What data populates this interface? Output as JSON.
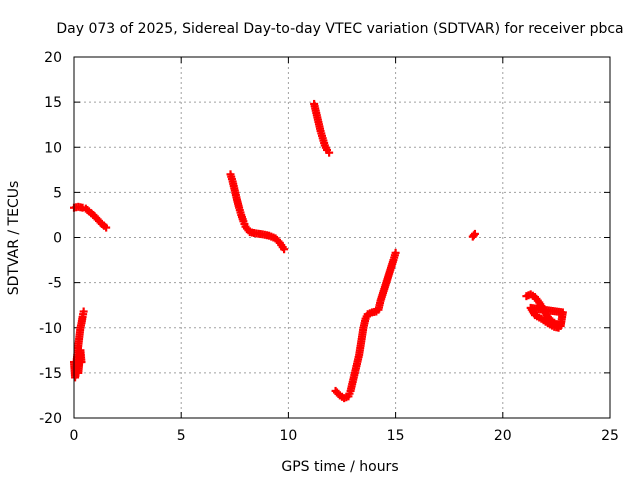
{
  "chart_data": {
    "type": "scatter",
    "title": "Day 073 of 2025, Sidereal Day-to-day VTEC variation (SDTVAR) for receiver pbca",
    "xlabel": "GPS time / hours",
    "ylabel": "SDTVAR / TECUs",
    "xlim": [
      0,
      25
    ],
    "ylim": [
      -20,
      20
    ],
    "xticks": [
      0,
      5,
      10,
      15,
      20,
      25
    ],
    "yticks": [
      -20,
      -15,
      -10,
      -5,
      0,
      5,
      10,
      15,
      20
    ],
    "grid": true,
    "marker": "plus",
    "color": "#ff0000",
    "series": [
      {
        "points": [
          [
            0.0,
            -13.8
          ],
          [
            0.05,
            -15.5
          ],
          [
            0.1,
            -14.5
          ],
          [
            0.15,
            -13.0
          ],
          [
            0.2,
            -12.0
          ],
          [
            0.25,
            -11.0
          ],
          [
            0.3,
            -10.0
          ],
          [
            0.35,
            -9.5
          ],
          [
            0.4,
            -8.8
          ],
          [
            0.45,
            -8.2
          ],
          [
            0.15,
            -14.0
          ],
          [
            0.25,
            -13.5
          ],
          [
            0.35,
            -13.8
          ],
          [
            0.3,
            -12.5
          ],
          [
            0.2,
            -15.0
          ]
        ]
      },
      {
        "points": [
          [
            0.0,
            3.3
          ],
          [
            0.2,
            3.4
          ],
          [
            0.4,
            3.3
          ],
          [
            0.55,
            3.2
          ],
          [
            0.7,
            2.9
          ],
          [
            0.9,
            2.5
          ],
          [
            1.1,
            2.0
          ],
          [
            1.3,
            1.5
          ],
          [
            1.5,
            1.1
          ]
        ]
      },
      {
        "points": [
          [
            7.3,
            7.0
          ],
          [
            7.4,
            6.2
          ],
          [
            7.5,
            5.2
          ],
          [
            7.6,
            4.2
          ],
          [
            7.7,
            3.3
          ],
          [
            7.8,
            2.5
          ],
          [
            7.9,
            1.8
          ],
          [
            8.0,
            1.2
          ],
          [
            8.2,
            0.6
          ],
          [
            8.5,
            0.45
          ],
          [
            8.8,
            0.35
          ],
          [
            9.1,
            0.2
          ],
          [
            9.4,
            -0.1
          ],
          [
            9.6,
            -0.6
          ],
          [
            9.8,
            -1.3
          ]
        ]
      },
      {
        "points": [
          [
            11.2,
            14.8
          ],
          [
            11.3,
            13.8
          ],
          [
            11.4,
            12.8
          ],
          [
            11.5,
            11.8
          ],
          [
            11.6,
            11.0
          ],
          [
            11.7,
            10.2
          ],
          [
            11.8,
            9.7
          ],
          [
            11.9,
            9.4
          ]
        ]
      },
      {
        "points": [
          [
            12.2,
            -17.0
          ],
          [
            12.4,
            -17.5
          ],
          [
            12.6,
            -17.8
          ],
          [
            12.8,
            -17.6
          ],
          [
            12.9,
            -17.0
          ],
          [
            13.0,
            -16.0
          ],
          [
            13.1,
            -15.0
          ],
          [
            13.2,
            -14.0
          ],
          [
            13.3,
            -13.0
          ],
          [
            13.4,
            -11.5
          ],
          [
            13.5,
            -10.0
          ],
          [
            13.6,
            -9.0
          ],
          [
            13.7,
            -8.5
          ],
          [
            13.9,
            -8.3
          ],
          [
            14.1,
            -8.2
          ],
          [
            14.2,
            -8.0
          ],
          [
            14.3,
            -7.0
          ],
          [
            14.5,
            -5.5
          ],
          [
            14.7,
            -4.0
          ],
          [
            14.9,
            -2.5
          ],
          [
            15.0,
            -1.7
          ]
        ]
      },
      {
        "points": [
          [
            18.6,
            0.1
          ],
          [
            18.7,
            0.4
          ],
          [
            18.65,
            0.25
          ]
        ]
      },
      {
        "points": [
          [
            21.1,
            -6.5
          ],
          [
            21.3,
            -6.3
          ],
          [
            21.5,
            -6.6
          ],
          [
            21.7,
            -7.2
          ],
          [
            21.9,
            -8.0
          ],
          [
            22.1,
            -8.8
          ],
          [
            22.3,
            -9.3
          ],
          [
            22.5,
            -9.6
          ],
          [
            22.7,
            -9.8
          ],
          [
            22.8,
            -8.3
          ],
          [
            21.3,
            -7.8
          ],
          [
            21.5,
            -8.6
          ],
          [
            21.8,
            -9.0
          ],
          [
            22.1,
            -9.5
          ],
          [
            22.4,
            -9.9
          ],
          [
            22.6,
            -10.0
          ],
          [
            22.7,
            -9.4
          ]
        ]
      }
    ]
  }
}
